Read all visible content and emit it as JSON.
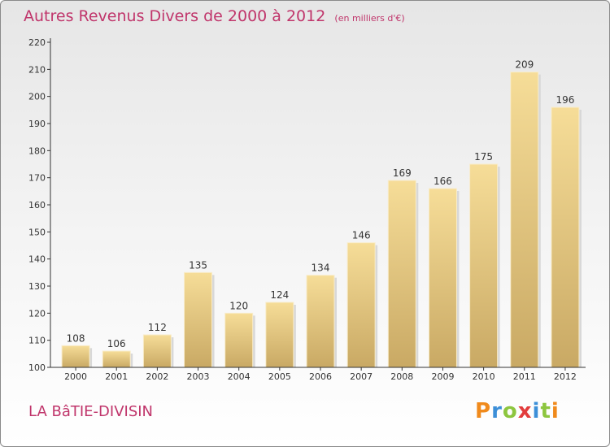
{
  "title": "Autres Revenus Divers de 2000 à 2012",
  "subtitle": "(en milliers d'€)",
  "commune": "LA BâTIE-DIVISIN",
  "logo": {
    "text": "Proxiti",
    "letters": [
      "P",
      "r",
      "o",
      "x",
      "i",
      "t",
      "i"
    ]
  },
  "colors": {
    "title": "#c0356b",
    "bar_top": "#f6dd98",
    "bar_bottom": "#c9a964",
    "axis": "#333333"
  },
  "chart_data": {
    "type": "bar",
    "categories": [
      "2000",
      "2001",
      "2002",
      "2003",
      "2004",
      "2005",
      "2006",
      "2007",
      "2008",
      "2009",
      "2010",
      "2011",
      "2012"
    ],
    "values": [
      108,
      106,
      112,
      135,
      120,
      124,
      134,
      146,
      169,
      166,
      175,
      209,
      196
    ],
    "ylim": [
      100,
      220
    ],
    "yticks": [
      100,
      110,
      120,
      130,
      140,
      150,
      160,
      170,
      180,
      190,
      200,
      210,
      220
    ],
    "xlabel": "",
    "ylabel": "",
    "grid": false,
    "data_labels": true
  }
}
